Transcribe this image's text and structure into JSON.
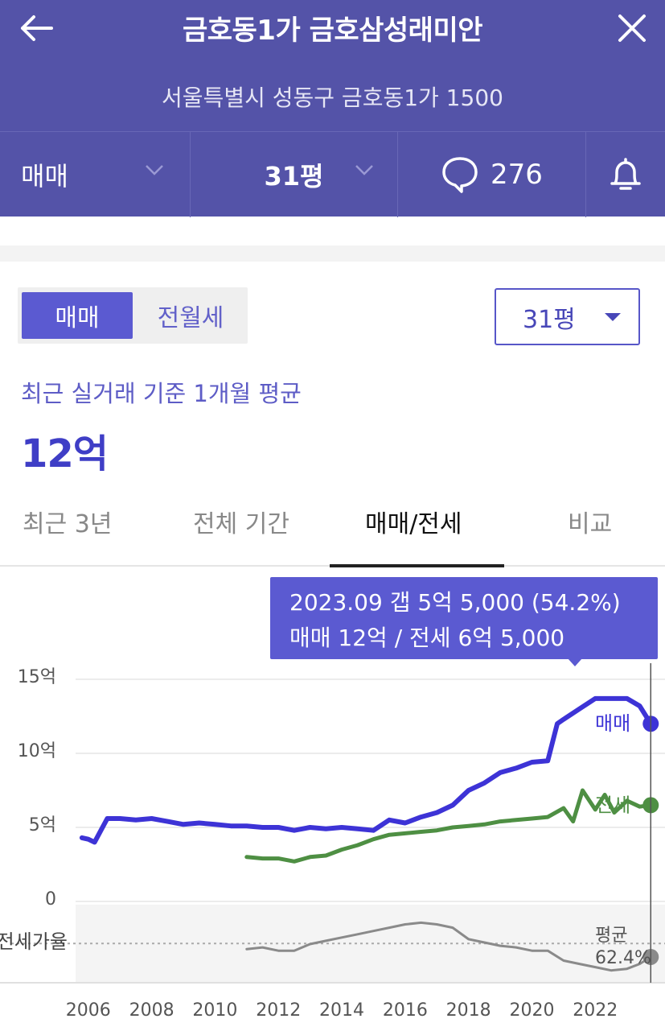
{
  "header": {
    "title": "금호동1가 금호삼성래미안",
    "address": "서울특별시 성동구 금호동1가 1500",
    "trade_type": "매매",
    "size": "31평",
    "comment_count": "276"
  },
  "controls": {
    "segment": [
      "매매",
      "전월세"
    ],
    "size_select": "31평"
  },
  "summary": {
    "subtitle": "최근 실거래 기준 1개월 평균",
    "price": "12억"
  },
  "tabs": [
    "최근 3년",
    "전체 기간",
    "매매/전세",
    "비교"
  ],
  "tooltip": {
    "line1": "2023.09  갭 5억 5,000 (54.2%)",
    "line2": "매매 12억 / 전세 6억 5,000"
  },
  "colors": {
    "header": "#5453a8",
    "accent": "#5b5ad1",
    "sale": "#3d33d6",
    "jeonse": "#4e8f43",
    "ratio": "#8a8a8a"
  },
  "chart_data": {
    "type": "line",
    "unit": "억",
    "y_ticks": [
      "15억",
      "10억",
      "5억",
      "0"
    ],
    "x_ticks": [
      "2006",
      "2008",
      "2010",
      "2012",
      "2014",
      "2016",
      "2018",
      "2020",
      "2022"
    ],
    "ylim": [
      0,
      15
    ],
    "xlim": [
      2005.6,
      2024.2
    ],
    "series": [
      {
        "name": "매매",
        "x": [
          2005.8,
          2006.0,
          2006.2,
          2006.4,
          2006.6,
          2007.0,
          2007.5,
          2008.0,
          2008.5,
          2009.0,
          2009.5,
          2010.0,
          2010.5,
          2011.0,
          2011.5,
          2012.0,
          2012.5,
          2013.0,
          2013.5,
          2014.0,
          2014.5,
          2015.0,
          2015.5,
          2016.0,
          2016.5,
          2017.0,
          2017.5,
          2018.0,
          2018.5,
          2019.0,
          2019.5,
          2020.0,
          2020.5,
          2020.8,
          2021.0,
          2021.5,
          2022.0,
          2022.5,
          2023.0,
          2023.4,
          2023.75
        ],
        "values": [
          4.3,
          4.2,
          4.0,
          4.8,
          5.6,
          5.6,
          5.5,
          5.6,
          5.4,
          5.2,
          5.3,
          5.2,
          5.1,
          5.1,
          5.0,
          5.0,
          4.8,
          5.0,
          4.9,
          5.0,
          4.9,
          4.8,
          5.5,
          5.3,
          5.7,
          6.0,
          6.5,
          7.5,
          8.0,
          8.7,
          9.0,
          9.4,
          9.5,
          12.0,
          12.3,
          13.0,
          13.7,
          13.7,
          13.7,
          13.2,
          12.0
        ]
      },
      {
        "name": "전세",
        "x": [
          2011.0,
          2011.5,
          2012.0,
          2012.5,
          2013.0,
          2013.5,
          2014.0,
          2014.5,
          2015.0,
          2015.5,
          2016.0,
          2016.5,
          2017.0,
          2017.5,
          2018.0,
          2018.5,
          2019.0,
          2019.5,
          2020.0,
          2020.5,
          2021.0,
          2021.3,
          2021.6,
          2022.0,
          2022.3,
          2022.6,
          2023.0,
          2023.4,
          2023.75
        ],
        "values": [
          3.0,
          2.9,
          2.9,
          2.7,
          3.0,
          3.1,
          3.5,
          3.8,
          4.2,
          4.5,
          4.6,
          4.7,
          4.8,
          5.0,
          5.1,
          5.2,
          5.4,
          5.5,
          5.6,
          5.7,
          6.3,
          5.4,
          7.5,
          6.2,
          7.2,
          6.0,
          6.8,
          6.4,
          6.5
        ]
      },
      {
        "name": "전세가율",
        "x": [
          2011.0,
          2011.5,
          2012.0,
          2012.5,
          2013.0,
          2013.5,
          2014.0,
          2014.5,
          2015.0,
          2015.5,
          2016.0,
          2016.5,
          2017.0,
          2017.5,
          2018.0,
          2018.5,
          2019.0,
          2019.5,
          2020.0,
          2020.5,
          2021.0,
          2021.5,
          2022.0,
          2022.5,
          2023.0,
          2023.4,
          2023.75
        ],
        "values": [
          59,
          60,
          58,
          58,
          62,
          64,
          66,
          68,
          70,
          72,
          74,
          75,
          74,
          72,
          65,
          63,
          61,
          60,
          58,
          58,
          52,
          50,
          48,
          46,
          47,
          50,
          54.2
        ]
      }
    ],
    "ratio_label": "전세가율",
    "ratio_avg_label": "평균",
    "ratio_avg_value": "62.4%",
    "ratio_avg": 62.4,
    "ratio_range": [
      40,
      85
    ],
    "cursor_x": 2023.75
  }
}
